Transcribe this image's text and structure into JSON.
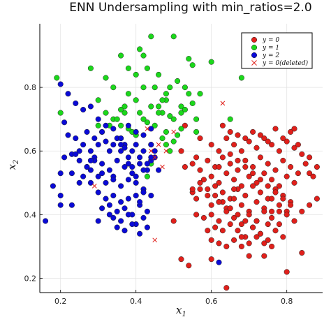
{
  "chart_data": {
    "type": "scatter",
    "title": "ENN Undersampling with min_ratios=2.0",
    "xlabel": "x",
    "xlabel_sub": "1",
    "ylabel": "x",
    "ylabel_sub": "2",
    "xlim": [
      0.145,
      0.895
    ],
    "ylim": [
      0.155,
      1.0
    ],
    "xticks": [
      0.2,
      0.4,
      0.6,
      0.8
    ],
    "yticks": [
      0.2,
      0.4,
      0.6,
      0.8
    ],
    "xtick_labels": [
      "0.2",
      "0.4",
      "0.6",
      "0.8"
    ],
    "ytick_labels": [
      "0.2",
      "0.4",
      "0.6",
      "0.8"
    ],
    "grid": true,
    "legend_position": "top-right",
    "series": [
      {
        "name": "y = 0",
        "color": "#e0201b",
        "marker": "circle",
        "x": [
          0.52,
          0.56,
          0.6,
          0.62,
          0.64,
          0.66,
          0.68,
          0.7,
          0.72,
          0.74,
          0.76,
          0.78,
          0.8,
          0.82,
          0.84,
          0.86,
          0.88,
          0.53,
          0.55,
          0.57,
          0.59,
          0.61,
          0.63,
          0.65,
          0.67,
          0.69,
          0.71,
          0.73,
          0.75,
          0.77,
          0.79,
          0.81,
          0.83,
          0.85,
          0.87,
          0.58,
          0.6,
          0.62,
          0.64,
          0.66,
          0.68,
          0.7,
          0.72,
          0.74,
          0.76,
          0.78,
          0.8,
          0.82,
          0.55,
          0.57,
          0.59,
          0.61,
          0.63,
          0.65,
          0.67,
          0.69,
          0.71,
          0.73,
          0.75,
          0.77,
          0.79,
          0.81,
          0.6,
          0.62,
          0.64,
          0.66,
          0.68,
          0.7,
          0.72,
          0.74,
          0.76,
          0.78,
          0.8,
          0.56,
          0.58,
          0.6,
          0.62,
          0.64,
          0.66,
          0.68,
          0.7,
          0.72,
          0.74,
          0.76,
          0.78,
          0.8,
          0.82,
          0.84,
          0.86,
          0.61,
          0.63,
          0.65,
          0.67,
          0.69,
          0.71,
          0.73,
          0.75,
          0.77,
          0.79,
          0.6,
          0.62,
          0.64,
          0.66,
          0.68,
          0.7,
          0.72,
          0.74,
          0.76,
          0.65,
          0.67,
          0.69,
          0.71,
          0.73,
          0.75,
          0.77,
          0.79,
          0.81,
          0.83,
          0.63,
          0.65,
          0.67,
          0.69,
          0.71,
          0.73,
          0.75,
          0.77,
          0.79,
          0.81,
          0.57,
          0.59,
          0.61,
          0.63,
          0.65,
          0.67,
          0.69,
          0.71,
          0.73,
          0.75,
          0.6,
          0.7,
          0.8,
          0.52,
          0.54,
          0.64,
          0.74,
          0.84,
          0.76,
          0.68,
          0.62,
          0.59,
          0.88,
          0.86,
          0.56,
          0.5,
          0.55,
          0.72,
          0.53,
          0.57,
          0.66,
          0.62,
          0.82,
          0.78
        ],
        "y": [
          0.6,
          0.58,
          0.62,
          0.6,
          0.64,
          0.62,
          0.6,
          0.63,
          0.61,
          0.64,
          0.62,
          0.6,
          0.63,
          0.61,
          0.59,
          0.58,
          0.55,
          0.55,
          0.56,
          0.54,
          0.57,
          0.55,
          0.58,
          0.56,
          0.54,
          0.57,
          0.55,
          0.58,
          0.56,
          0.54,
          0.57,
          0.55,
          0.53,
          0.56,
          0.52,
          0.51,
          0.52,
          0.5,
          0.53,
          0.51,
          0.49,
          0.52,
          0.5,
          0.53,
          0.51,
          0.49,
          0.52,
          0.5,
          0.47,
          0.48,
          0.46,
          0.49,
          0.47,
          0.45,
          0.48,
          0.46,
          0.49,
          0.47,
          0.45,
          0.48,
          0.46,
          0.44,
          0.43,
          0.44,
          0.42,
          0.45,
          0.43,
          0.41,
          0.44,
          0.42,
          0.45,
          0.43,
          0.41,
          0.4,
          0.39,
          0.4,
          0.38,
          0.41,
          0.39,
          0.37,
          0.4,
          0.38,
          0.41,
          0.39,
          0.37,
          0.4,
          0.38,
          0.41,
          0.43,
          0.36,
          0.35,
          0.37,
          0.35,
          0.33,
          0.36,
          0.34,
          0.37,
          0.35,
          0.33,
          0.32,
          0.31,
          0.3,
          0.32,
          0.3,
          0.31,
          0.33,
          0.31,
          0.3,
          0.66,
          0.65,
          0.64,
          0.66,
          0.65,
          0.63,
          0.67,
          0.64,
          0.66,
          0.62,
          0.68,
          0.59,
          0.57,
          0.55,
          0.53,
          0.51,
          0.49,
          0.47,
          0.45,
          0.43,
          0.5,
          0.48,
          0.46,
          0.44,
          0.42,
          0.4,
          0.38,
          0.36,
          0.34,
          0.32,
          0.26,
          0.27,
          0.22,
          0.26,
          0.24,
          0.17,
          0.27,
          0.28,
          0.41,
          0.33,
          0.44,
          0.35,
          0.45,
          0.53,
          0.45,
          0.38,
          0.48,
          0.38,
          0.68,
          0.64,
          0.48,
          0.55,
          0.67,
          0.41
        ]
      },
      {
        "name": "y = 1",
        "color": "#1bd81b",
        "marker": "circle",
        "x": [
          0.19,
          0.2,
          0.28,
          0.3,
          0.32,
          0.34,
          0.36,
          0.37,
          0.38,
          0.4,
          0.41,
          0.42,
          0.43,
          0.44,
          0.45,
          0.46,
          0.47,
          0.48,
          0.49,
          0.5,
          0.51,
          0.52,
          0.53,
          0.54,
          0.55,
          0.56,
          0.57,
          0.3,
          0.32,
          0.34,
          0.36,
          0.38,
          0.4,
          0.42,
          0.44,
          0.46,
          0.48,
          0.5,
          0.52,
          0.54,
          0.56,
          0.31,
          0.33,
          0.35,
          0.37,
          0.39,
          0.41,
          0.43,
          0.45,
          0.47,
          0.49,
          0.51,
          0.53,
          0.36,
          0.38,
          0.4,
          0.42,
          0.44,
          0.46,
          0.48,
          0.5,
          0.52,
          0.55,
          0.6,
          0.65,
          0.68,
          0.36,
          0.43,
          0.44,
          0.49,
          0.47,
          0.48
        ],
        "y": [
          0.83,
          0.72,
          0.86,
          0.76,
          0.83,
          0.8,
          0.9,
          0.72,
          0.86,
          0.84,
          0.92,
          0.9,
          0.86,
          0.96,
          0.8,
          0.84,
          0.72,
          0.78,
          0.8,
          0.96,
          0.82,
          0.74,
          0.8,
          0.89,
          0.87,
          0.7,
          0.78,
          0.68,
          0.72,
          0.7,
          0.73,
          0.78,
          0.76,
          0.8,
          0.74,
          0.72,
          0.76,
          0.7,
          0.72,
          0.78,
          0.66,
          0.66,
          0.68,
          0.7,
          0.74,
          0.66,
          0.72,
          0.69,
          0.68,
          0.76,
          0.71,
          0.65,
          0.73,
          0.64,
          0.67,
          0.65,
          0.7,
          0.62,
          0.74,
          0.66,
          0.63,
          0.67,
          0.75,
          0.88,
          0.7,
          0.83,
          0.68,
          0.52,
          0.56,
          0.6,
          0.64,
          0.62
        ]
      },
      {
        "name": "y = 2",
        "color": "#0a0ad6",
        "marker": "circle",
        "x": [
          0.16,
          0.18,
          0.2,
          0.21,
          0.22,
          0.23,
          0.24,
          0.25,
          0.26,
          0.27,
          0.28,
          0.29,
          0.3,
          0.31,
          0.32,
          0.33,
          0.34,
          0.35,
          0.36,
          0.37,
          0.38,
          0.39,
          0.4,
          0.41,
          0.42,
          0.43,
          0.44,
          0.45,
          0.2,
          0.22,
          0.24,
          0.26,
          0.28,
          0.3,
          0.32,
          0.34,
          0.36,
          0.38,
          0.4,
          0.42,
          0.44,
          0.23,
          0.25,
          0.27,
          0.29,
          0.31,
          0.33,
          0.35,
          0.37,
          0.39,
          0.41,
          0.43,
          0.45,
          0.28,
          0.3,
          0.32,
          0.34,
          0.36,
          0.38,
          0.4,
          0.42,
          0.44,
          0.3,
          0.32,
          0.34,
          0.36,
          0.38,
          0.4,
          0.42,
          0.31,
          0.33,
          0.35,
          0.37,
          0.39,
          0.41,
          0.43,
          0.34,
          0.36,
          0.38,
          0.4,
          0.42,
          0.35,
          0.37,
          0.39,
          0.41,
          0.43,
          0.2,
          0.23,
          0.28,
          0.3,
          0.33,
          0.36,
          0.38,
          0.4,
          0.42,
          0.44,
          0.46,
          0.25,
          0.27,
          0.29,
          0.31,
          0.34,
          0.2,
          0.21,
          0.24,
          0.26,
          0.28,
          0.37,
          0.39,
          0.41,
          0.62,
          0.44
        ],
        "y": [
          0.38,
          0.49,
          0.53,
          0.69,
          0.65,
          0.53,
          0.64,
          0.6,
          0.62,
          0.66,
          0.6,
          0.64,
          0.62,
          0.66,
          0.63,
          0.6,
          0.62,
          0.64,
          0.6,
          0.62,
          0.58,
          0.6,
          0.62,
          0.58,
          0.6,
          0.56,
          0.62,
          0.58,
          0.81,
          0.78,
          0.75,
          0.73,
          0.74,
          0.7,
          0.68,
          0.67,
          0.64,
          0.68,
          0.66,
          0.65,
          0.67,
          0.59,
          0.57,
          0.55,
          0.58,
          0.56,
          0.54,
          0.57,
          0.55,
          0.53,
          0.56,
          0.54,
          0.6,
          0.5,
          0.52,
          0.5,
          0.52,
          0.49,
          0.51,
          0.5,
          0.48,
          0.46,
          0.47,
          0.45,
          0.46,
          0.44,
          0.45,
          0.46,
          0.47,
          0.42,
          0.43,
          0.41,
          0.42,
          0.4,
          0.43,
          0.41,
          0.39,
          0.38,
          0.4,
          0.37,
          0.39,
          0.36,
          0.35,
          0.37,
          0.34,
          0.36,
          0.46,
          0.43,
          0.54,
          0.38,
          0.4,
          0.62,
          0.56,
          0.52,
          0.54,
          0.57,
          0.54,
          0.5,
          0.55,
          0.57,
          0.53,
          0.51,
          0.43,
          0.58,
          0.59,
          0.52,
          0.57,
          0.61,
          0.55,
          0.44,
          0.25,
          0.58
        ]
      },
      {
        "name": "y = 0(deleted)",
        "color": "#e0201b",
        "marker": "x",
        "x": [
          0.43,
          0.44,
          0.45,
          0.46,
          0.47,
          0.48,
          0.5,
          0.52,
          0.45,
          0.29,
          0.63
        ],
        "y": [
          0.67,
          0.6,
          0.58,
          0.62,
          0.55,
          0.6,
          0.66,
          0.6,
          0.32,
          0.49,
          0.75
        ]
      }
    ]
  }
}
